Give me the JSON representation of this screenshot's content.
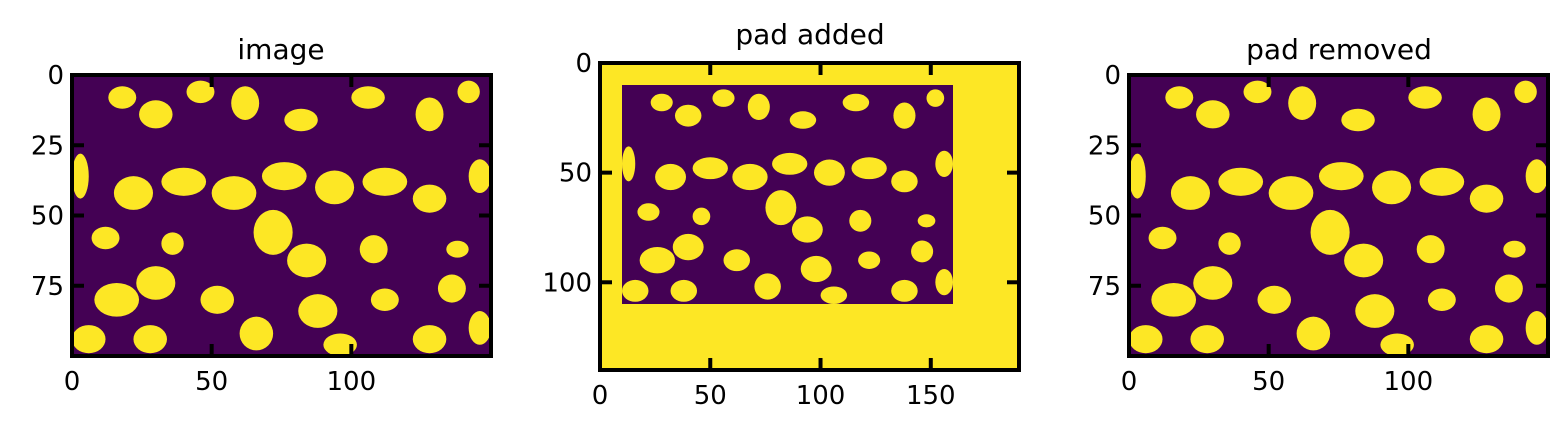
{
  "chart_data": [
    {
      "type": "heatmap",
      "title": "image",
      "xlim": [
        0,
        150
      ],
      "ylim": [
        100,
        0
      ],
      "xticks": [
        0,
        50,
        100
      ],
      "yticks": [
        0,
        25,
        50,
        75
      ],
      "xticklabels": [
        "0",
        "50",
        "100"
      ],
      "yticklabels": [
        "0",
        "25",
        "50",
        "75"
      ],
      "image_shape": [
        100,
        150
      ],
      "colormap": [
        "#440154",
        "#fde725"
      ],
      "grid": false
    },
    {
      "type": "heatmap",
      "title": "pad added",
      "xlim": [
        0,
        190
      ],
      "ylim": [
        140,
        0
      ],
      "xticks": [
        0,
        50,
        100,
        150
      ],
      "yticks": [
        0,
        50,
        100
      ],
      "xticklabels": [
        "0",
        "50",
        "100",
        "150"
      ],
      "yticklabels": [
        "0",
        "50",
        "100"
      ],
      "image_shape": [
        140,
        190
      ],
      "inner_region": {
        "x": [
          10,
          160
        ],
        "y": [
          10,
          110
        ]
      },
      "colormap": [
        "#440154",
        "#fde725"
      ],
      "grid": false
    },
    {
      "type": "heatmap",
      "title": "pad removed",
      "xlim": [
        0,
        150
      ],
      "ylim": [
        100,
        0
      ],
      "xticks": [
        0,
        50,
        100
      ],
      "yticks": [
        0,
        25,
        50,
        75
      ],
      "xticklabels": [
        "0",
        "50",
        "100"
      ],
      "yticklabels": [
        "0",
        "25",
        "50",
        "75"
      ],
      "image_shape": [
        100,
        150
      ],
      "colormap": [
        "#440154",
        "#fde725"
      ],
      "grid": false
    }
  ]
}
